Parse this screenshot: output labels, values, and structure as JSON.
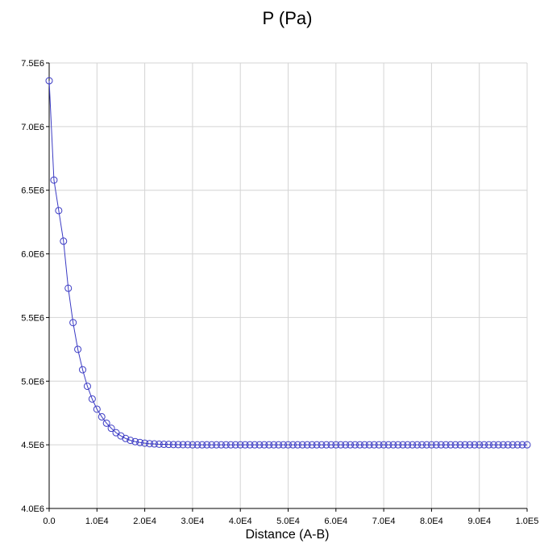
{
  "chart_data": {
    "type": "line",
    "title": "P (Pa)",
    "xlabel": "Distance (A-B)",
    "ylabel": "",
    "xlim": [
      0,
      100000
    ],
    "ylim": [
      4000000,
      7500000
    ],
    "grid": true,
    "x_ticks": [
      "0.0",
      "1.0E4",
      "2.0E4",
      "3.0E4",
      "4.0E4",
      "5.0E4",
      "6.0E4",
      "7.0E4",
      "8.0E4",
      "9.0E4",
      "1.0E5"
    ],
    "y_ticks": [
      "4.0E6",
      "4.5E6",
      "5.0E6",
      "5.5E6",
      "6.0E6",
      "6.5E6",
      "7.0E6",
      "7.5E6"
    ],
    "colors": {
      "series": "#3b3bc4",
      "grid": "#d4d4d4",
      "axis": "#000000"
    },
    "series": [
      {
        "marker": "circle-open",
        "x": [
          0,
          1000,
          2000,
          3000,
          4000,
          5000,
          6000,
          7000,
          8000,
          9000,
          10000,
          11000,
          12000,
          13000,
          14000,
          15000,
          16000,
          17000,
          18000,
          19000,
          20000,
          21000,
          22000,
          23000,
          24000,
          25000,
          26000,
          27000,
          28000,
          29000,
          30000,
          31000,
          32000,
          33000,
          34000,
          35000,
          36000,
          37000,
          38000,
          39000,
          40000,
          41000,
          42000,
          43000,
          44000,
          45000,
          46000,
          47000,
          48000,
          49000,
          50000,
          51000,
          52000,
          53000,
          54000,
          55000,
          56000,
          57000,
          58000,
          59000,
          60000,
          61000,
          62000,
          63000,
          64000,
          65000,
          66000,
          67000,
          68000,
          69000,
          70000,
          71000,
          72000,
          73000,
          74000,
          75000,
          76000,
          77000,
          78000,
          79000,
          80000,
          81000,
          82000,
          83000,
          84000,
          85000,
          86000,
          87000,
          88000,
          89000,
          90000,
          91000,
          92000,
          93000,
          94000,
          95000,
          96000,
          97000,
          98000,
          99000,
          100000
        ],
        "y": [
          7360000,
          6580000,
          6340000,
          6100000,
          5730000,
          5460000,
          5250000,
          5090000,
          4960000,
          4860000,
          4780000,
          4720000,
          4670000,
          4630000,
          4595000,
          4570000,
          4550000,
          4535000,
          4525000,
          4518000,
          4513000,
          4509000,
          4507000,
          4505000,
          4504000,
          4503000,
          4502000,
          4501500,
          4501000,
          4501000,
          4500000,
          4500000,
          4500000,
          4500000,
          4500000,
          4500000,
          4500000,
          4500000,
          4500000,
          4500000,
          4500000,
          4500000,
          4500000,
          4500000,
          4500000,
          4500000,
          4500000,
          4500000,
          4500000,
          4500000,
          4500000,
          4500000,
          4500000,
          4500000,
          4500000,
          4500000,
          4500000,
          4500000,
          4500000,
          4500000,
          4500000,
          4500000,
          4500000,
          4500000,
          4500000,
          4500000,
          4500000,
          4500000,
          4500000,
          4500000,
          4500000,
          4500000,
          4500000,
          4500000,
          4500000,
          4500000,
          4500000,
          4500000,
          4500000,
          4500000,
          4500000,
          4500000,
          4500000,
          4500000,
          4500000,
          4500000,
          4500000,
          4500000,
          4500000,
          4500000,
          4500000,
          4500000,
          4500000,
          4500000,
          4500000,
          4500000,
          4500000,
          4500000,
          4500000,
          4500000,
          4500000
        ]
      }
    ]
  }
}
